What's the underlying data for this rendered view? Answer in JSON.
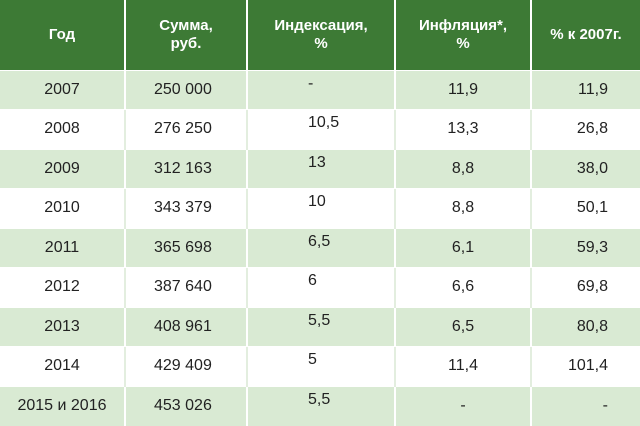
{
  "table": {
    "headers": [
      "Год",
      "Сумма,\nруб.",
      "Индексация,\n%",
      "Инфляция*,\n%",
      "% к  2007г."
    ],
    "rows": [
      [
        "2007",
        "250 000",
        "-",
        "11,9",
        "11,9"
      ],
      [
        "2008",
        "276 250",
        "10,5",
        "13,3",
        "26,8"
      ],
      [
        "2009",
        "312 163",
        "13",
        "8,8",
        "38,0"
      ],
      [
        "2010",
        "343 379",
        "10",
        "8,8",
        "50,1"
      ],
      [
        "2011",
        "365 698",
        "6,5",
        "6,1",
        "59,3"
      ],
      [
        "2012",
        "387 640",
        "6",
        "6,6",
        "69,8"
      ],
      [
        "2013",
        "408 961",
        "5,5",
        "6,5",
        "80,8"
      ],
      [
        "2014",
        "429 409",
        "5",
        "11,4",
        "101,4"
      ],
      [
        "2015 и 2016",
        "453 026",
        "5,5",
        "-",
        "-"
      ]
    ]
  },
  "colors": {
    "header_bg": "#3d7a35",
    "header_text": "#ffffff",
    "row_odd_bg": "#d9ead3",
    "row_even_bg": "#ffffff",
    "cell_text": "#222222"
  }
}
